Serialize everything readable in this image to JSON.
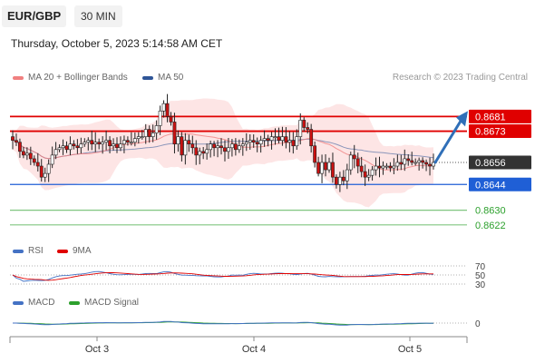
{
  "header": {
    "symbol": "EUR/GBP",
    "timeframe": "30 MIN",
    "datetime": "Thursday, October 5, 2023 5:14:58 AM CET",
    "credit": "Research © 2023 Trading Central"
  },
  "legends": {
    "price": [
      {
        "name": "MA 20 + Bollinger Bands",
        "color": "#f08080"
      },
      {
        "name": "MA 50",
        "color": "#2f5597"
      }
    ],
    "rsi": [
      {
        "name": "RSI",
        "color": "#4472c4"
      },
      {
        "name": "9MA",
        "color": "#e00000"
      }
    ],
    "macd": [
      {
        "name": "MACD",
        "color": "#4472c4"
      },
      {
        "name": "MACD Signal",
        "color": "#2ca02c"
      }
    ]
  },
  "colors": {
    "resistance": "#e00000",
    "support": "#1f5fd6",
    "target": "#2ca02c",
    "current": "#333333",
    "arrow": "#2f6fb8",
    "candle_up": "#ffffff",
    "candle_down": "#cc1111",
    "band_fill": "#fde0e0"
  },
  "chart_data": {
    "type": "candlestick",
    "symbol": "EUR/GBP",
    "interval": "30 MIN",
    "x_ticks": [
      "Oct 3",
      "Oct 4",
      "Oct 5"
    ],
    "ylim": [
      0.8615,
      0.8695
    ],
    "price_levels": [
      {
        "label": "0.8681",
        "value": 0.8681,
        "kind": "resistance"
      },
      {
        "label": "0.8673",
        "value": 0.8673,
        "kind": "resistance"
      },
      {
        "label": "0.8656",
        "value": 0.8656,
        "kind": "current"
      },
      {
        "label": "0.8644",
        "value": 0.8644,
        "kind": "support"
      },
      {
        "label": "0.8630",
        "value": 0.863,
        "kind": "target"
      },
      {
        "label": "0.8622",
        "value": 0.8622,
        "kind": "target"
      }
    ],
    "close": [
      0.8668,
      0.8667,
      0.8662,
      0.866,
      0.8661,
      0.8658,
      0.8656,
      0.8654,
      0.8648,
      0.865,
      0.8655,
      0.866,
      0.8663,
      0.8664,
      0.8665,
      0.8663,
      0.8666,
      0.8665,
      0.8664,
      0.8666,
      0.8667,
      0.8668,
      0.8666,
      0.8667,
      0.8666,
      0.8667,
      0.8668,
      0.8665,
      0.8666,
      0.8664,
      0.8666,
      0.8668,
      0.8667,
      0.8667,
      0.8669,
      0.867,
      0.867,
      0.8674,
      0.867,
      0.8672,
      0.8676,
      0.8684,
      0.8688,
      0.8681,
      0.8678,
      0.8666,
      0.867,
      0.866,
      0.8668,
      0.8666,
      0.8664,
      0.866,
      0.8662,
      0.8661,
      0.8663,
      0.8666,
      0.8664,
      0.8665,
      0.8664,
      0.8662,
      0.8664,
      0.8666,
      0.8663,
      0.8665,
      0.8666,
      0.8667,
      0.8668,
      0.8667,
      0.8666,
      0.8668,
      0.8669,
      0.8668,
      0.867,
      0.867,
      0.8668,
      0.867,
      0.8667,
      0.8668,
      0.8665,
      0.867,
      0.8679,
      0.8675,
      0.8674,
      0.8665,
      0.8656,
      0.865,
      0.8656,
      0.8652,
      0.8656,
      0.8648,
      0.8644,
      0.8648,
      0.8646,
      0.8652,
      0.866,
      0.8658,
      0.8654,
      0.8651,
      0.8648,
      0.8649,
      0.8652,
      0.8654,
      0.8653,
      0.8654,
      0.8654,
      0.8653,
      0.8654,
      0.8656,
      0.8655,
      0.8658,
      0.8657,
      0.8656,
      0.8656,
      0.8657,
      0.8656,
      0.8655,
      0.8654,
      0.8656
    ],
    "forecast_arrow": {
      "from": 0.8656,
      "to": 0.8681
    },
    "rsi": {
      "levels": [
        70,
        50,
        30
      ],
      "labels": [
        "70",
        "50",
        "30"
      ],
      "ylim": [
        20,
        80
      ]
    },
    "macd": {
      "levels": [
        0
      ],
      "labels": [
        "0"
      ]
    }
  }
}
